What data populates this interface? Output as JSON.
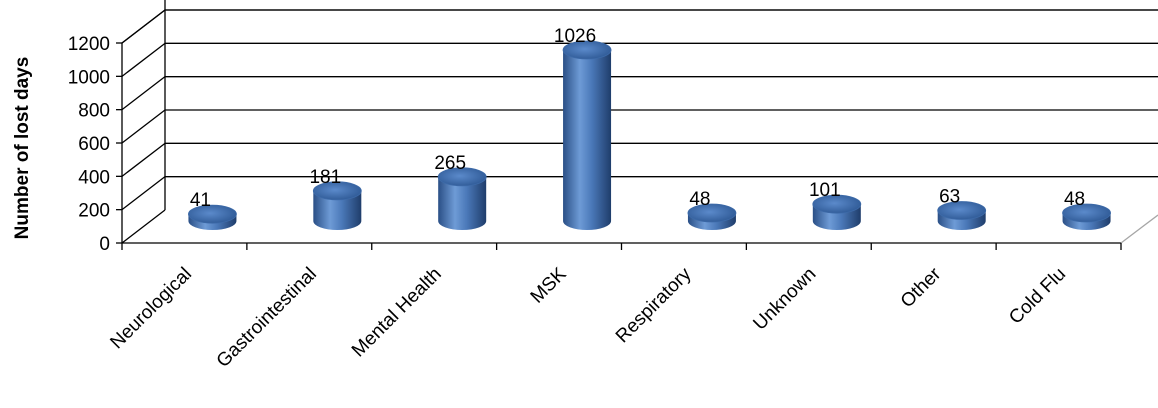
{
  "chart_data": {
    "type": "bar",
    "style": "3d-cylinder",
    "categories": [
      "Neurological",
      "Gastrointestinal",
      "Mental Health",
      "MSK",
      "Respiratory",
      "Unknown",
      "Other",
      "Cold Flu"
    ],
    "values": [
      41,
      181,
      265,
      1026,
      48,
      101,
      63,
      48
    ],
    "data_labels": [
      "41",
      "181",
      "265",
      "1026",
      "48",
      "101",
      "63",
      "48"
    ],
    "title": "",
    "xlabel": "",
    "ylabel": "Number of lost days",
    "ylim": [
      0,
      1200
    ],
    "yticks": [
      "0",
      "200",
      "400",
      "600",
      "800",
      "1000",
      "1200"
    ],
    "grid": true,
    "legend": "none",
    "bar_color": "#4f81bd"
  }
}
